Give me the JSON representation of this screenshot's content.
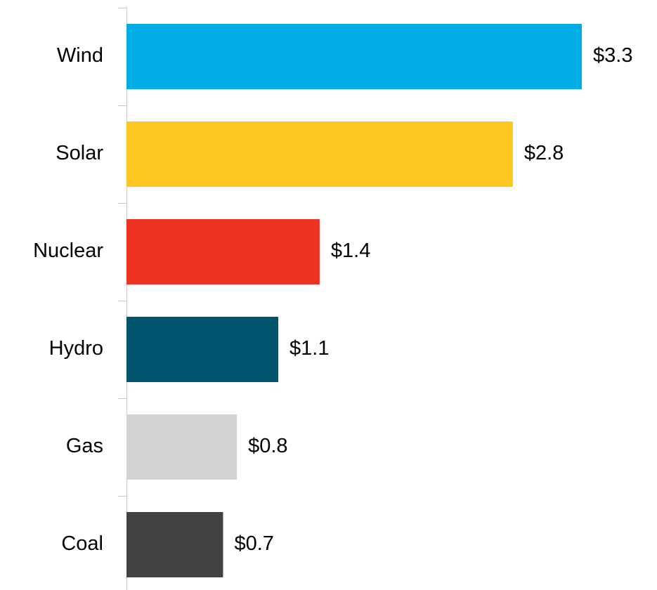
{
  "chart_data": {
    "type": "bar",
    "orientation": "horizontal",
    "categories": [
      "Wind",
      "Solar",
      "Nuclear",
      "Hydro",
      "Gas",
      "Coal"
    ],
    "values": [
      3.3,
      2.8,
      1.4,
      1.1,
      0.8,
      0.7
    ],
    "value_labels": [
      "$3.3",
      "$2.8",
      "$1.4",
      "$1.1",
      "$0.8",
      "$0.7"
    ],
    "colors": [
      "#00ade5",
      "#fdc71f",
      "#ee3325",
      "#00546e",
      "#d3d3d3",
      "#424242"
    ]
  }
}
